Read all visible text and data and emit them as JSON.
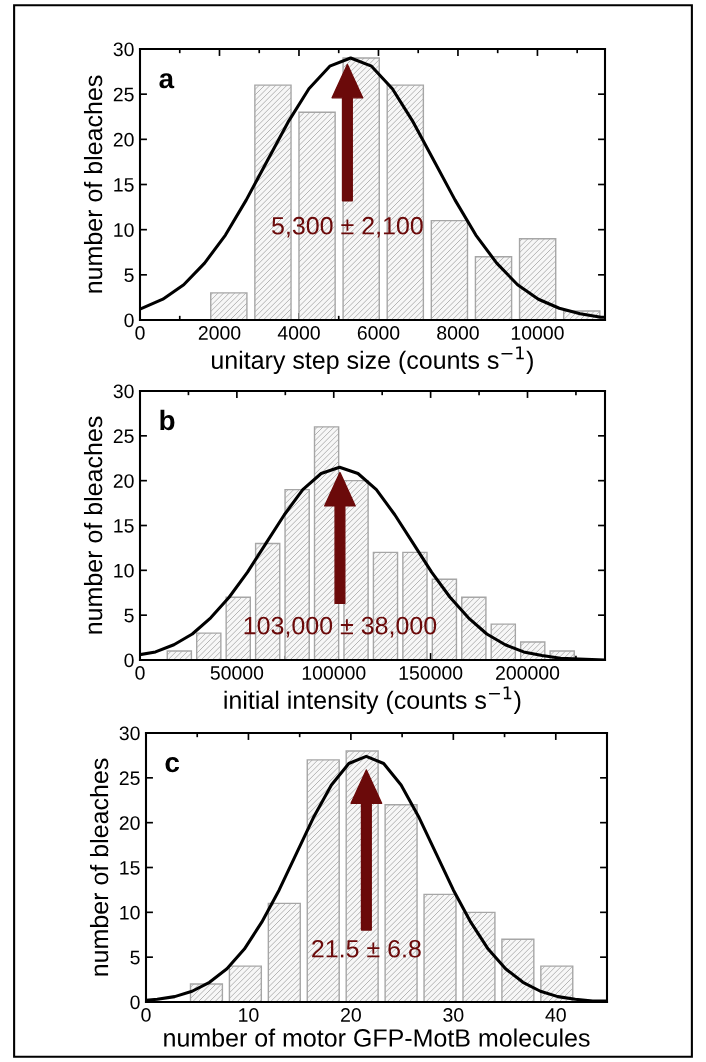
{
  "chart_data": [
    {
      "type": "histogram",
      "title": "a",
      "xlabel": "unitary step size (counts s$^{−1}$)",
      "ylabel": "number of bleaches",
      "bins": [
        1680,
        2790,
        3900,
        5010,
        6120,
        7230,
        8340,
        9450,
        10560,
        11670
      ],
      "values": [
        3,
        26,
        23,
        29,
        26,
        11,
        7,
        9,
        1
      ],
      "color": "#a6a6a6",
      "series": [
        {
          "type": "line",
          "color": "#000000",
          "x": [
            0,
            575,
            1100,
            1625,
            2150,
            2675,
            3200,
            3725,
            4250,
            4775,
            5300,
            5825,
            6350,
            6875,
            7400,
            7925,
            8450,
            8975,
            9500,
            10025,
            10550,
            11075,
            11600,
            11700
          ],
          "values": [
            1.2,
            2.3,
            3.9,
            6.3,
            9.4,
            13.3,
            17.6,
            21.9,
            25.6,
            28.1,
            29,
            28.1,
            25.6,
            21.9,
            17.6,
            13.3,
            9.4,
            6.3,
            3.9,
            2.3,
            1.3,
            0.7,
            0.3,
            0.3
          ]
        }
      ],
      "annotations": [
        "5,300 ± 2,100"
      ],
      "xlim": [
        0,
        11700
      ],
      "ylim": [
        0,
        30
      ],
      "xticks": [
        0,
        {
          "value": 1000,
          "label": null
        },
        2000,
        {
          "value": 3000,
          "label": null
        },
        4000,
        {
          "value": 5000,
          "label": null
        },
        6000,
        {
          "value": 7000,
          "label": null
        },
        8000,
        {
          "value": 9000,
          "label": null
        },
        10000,
        {
          "value": 11000,
          "label": null
        }
      ],
      "yticks": [
        0,
        5,
        10,
        15,
        20,
        25,
        30
      ],
      "grid": false
    },
    {
      "type": "histogram",
      "title": "b",
      "xlabel": "initial intensity (counts s$^{−1}$)",
      "ylabel": "number of bleaches",
      "bins": [
        12700,
        27900,
        43100,
        58300,
        73500,
        88700,
        103900,
        119100,
        134300,
        149500,
        164700,
        179900,
        195100,
        210300,
        225500
      ],
      "values": [
        1,
        3,
        7,
        13,
        19,
        26,
        20,
        12,
        12,
        9,
        7,
        4,
        2,
        1
      ],
      "color": "#a6a6a6",
      "series": [
        {
          "type": "line",
          "color": "#000000",
          "x": [
            0,
            8000,
            17500,
            27000,
            36500,
            46000,
            55500,
            65000,
            74500,
            84000,
            93500,
            103000,
            112500,
            122000,
            131500,
            141000,
            150500,
            160000,
            169500,
            179000,
            188500,
            198000,
            207500,
            217000,
            226500,
            240000
          ],
          "values": [
            0.6,
            0.9,
            1.7,
            2.9,
            4.7,
            7.0,
            9.8,
            13.0,
            16.2,
            19.0,
            20.8,
            21.5,
            20.8,
            19.0,
            16.2,
            13.0,
            9.8,
            7.0,
            4.7,
            2.9,
            1.7,
            0.9,
            0.5,
            0.2,
            0.1,
            0
          ]
        }
      ],
      "annotations": [
        "103,000 ± 38,000"
      ],
      "xlim": [
        0,
        240000
      ],
      "ylim": [
        0,
        30
      ],
      "xticks": [
        0,
        {
          "value": 25000,
          "label": null
        },
        50000,
        {
          "value": 75000,
          "label": null
        },
        100000,
        {
          "value": 125000,
          "label": null
        },
        150000,
        {
          "value": 175000,
          "label": null
        },
        200000,
        {
          "value": 225000,
          "label": null
        }
      ],
      "yticks": [
        0,
        5,
        10,
        15,
        20,
        25,
        30
      ],
      "grid": false
    },
    {
      "type": "histogram",
      "title": "c",
      "xlabel": "number of motor GFP-MotB molecules",
      "ylabel": "number of bleaches",
      "bins": [
        4,
        7.8,
        11.6,
        15.4,
        19.2,
        23,
        26.8,
        30.6,
        34.4,
        38.2,
        42
      ],
      "values": [
        2,
        4,
        11,
        27,
        28,
        22,
        12,
        10,
        7,
        4
      ],
      "color": "#a6a6a6",
      "series": [
        {
          "type": "line",
          "color": "#000000",
          "x": [
            0,
            1.1,
            2.8,
            4.5,
            6.2,
            7.9,
            9.6,
            11.3,
            13,
            14.7,
            16.4,
            18.1,
            19.8,
            21.5,
            23.2,
            24.9,
            26.6,
            28.3,
            30,
            31.7,
            33.4,
            35.1,
            36.8,
            38.5,
            40.2,
            41.9,
            43.6,
            45
          ],
          "values": [
            0.2,
            0.3,
            0.6,
            1.2,
            2.2,
            3.7,
            5.9,
            8.9,
            12.5,
            16.6,
            20.7,
            24.2,
            26.6,
            27.4,
            26.6,
            24.2,
            20.7,
            16.6,
            12.5,
            8.9,
            5.9,
            3.7,
            2.2,
            1.2,
            0.6,
            0.3,
            0.1,
            0.1
          ]
        }
      ],
      "annotations": [
        "21.5 ± 6.8"
      ],
      "xlim": [
        0,
        45
      ],
      "ylim": [
        0,
        30
      ],
      "xticks": [
        0,
        {
          "value": 5,
          "label": null
        },
        10,
        {
          "value": 15,
          "label": null
        },
        20,
        {
          "value": 25,
          "label": null
        },
        30,
        {
          "value": 35,
          "label": null
        },
        40
      ],
      "yticks": [
        0,
        5,
        10,
        15,
        20,
        25,
        30
      ],
      "grid": false
    }
  ]
}
